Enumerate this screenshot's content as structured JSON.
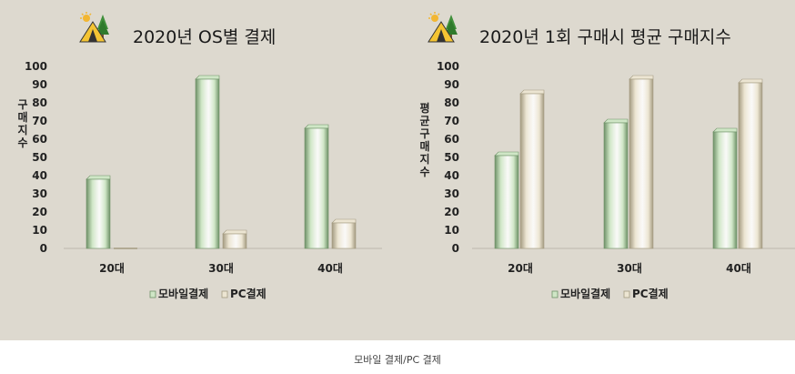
{
  "caption": "모바일 결제/PC 결제",
  "chart_data": [
    {
      "type": "bar",
      "title": "2020년 OS별 결제",
      "ylabel": "구매지수",
      "xlabel": "",
      "ylim": [
        0,
        100
      ],
      "yticks": [
        0,
        10,
        20,
        30,
        40,
        50,
        60,
        70,
        80,
        90,
        100
      ],
      "categories": [
        "20대",
        "30대",
        "40대"
      ],
      "series": [
        {
          "name": "모바일결제",
          "values": [
            38,
            93,
            66
          ]
        },
        {
          "name": "PC결제",
          "values": [
            0,
            8,
            14
          ]
        }
      ],
      "legend": "bottom",
      "grid": false
    },
    {
      "type": "bar",
      "title": "2020년 1회 구매시 평균 구매지수",
      "ylabel": "평균구매지수",
      "xlabel": "",
      "ylim": [
        0,
        100
      ],
      "yticks": [
        0,
        10,
        20,
        30,
        40,
        50,
        60,
        70,
        80,
        90,
        100
      ],
      "categories": [
        "20대",
        "30대",
        "40대"
      ],
      "series": [
        {
          "name": "모바일결제",
          "values": [
            51,
            69,
            64
          ]
        },
        {
          "name": "PC결제",
          "values": [
            85,
            93,
            91
          ]
        }
      ],
      "legend": "bottom",
      "grid": false
    }
  ],
  "colors": {
    "mobile": "#cfe6c6",
    "pc": "#ece5d2",
    "background": "#ddd9cf"
  },
  "icons": [
    "camping-tent-icon",
    "camping-tent-icon"
  ]
}
